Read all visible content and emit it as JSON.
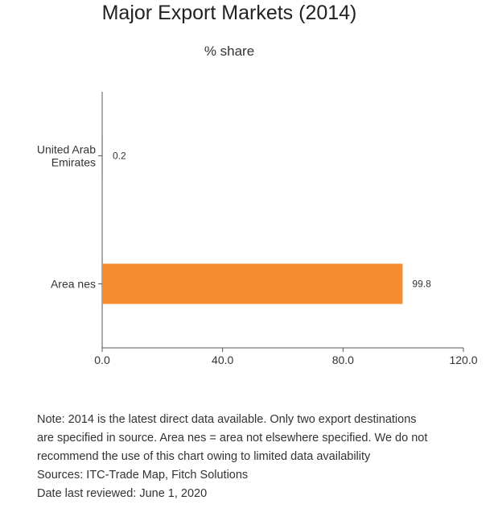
{
  "chart_data": {
    "type": "bar",
    "orientation": "horizontal",
    "title": "Major Export Markets (2014)",
    "subtitle": "% share",
    "categories": [
      [
        "United Arab",
        "Emirates"
      ],
      [
        "Area nes"
      ]
    ],
    "values": [
      0.2,
      99.8
    ],
    "value_labels": [
      "0.2",
      "99.8"
    ],
    "xlim": [
      0,
      120
    ],
    "x_ticks": [
      0,
      40,
      80,
      120
    ],
    "x_tick_labels": [
      "0.0",
      "40.0",
      "80.0",
      "120.0"
    ],
    "bar_color": "#f68d31",
    "grid": false,
    "legend": "none"
  },
  "notes": {
    "lines": [
      "Note: 2014 is the latest direct data available. Only two export destinations",
      "are specified in source. Area nes = area not elsewhere specified. We do not",
      "recommend the use of this chart owing to limited data availability",
      "Sources: ITC-Trade Map, Fitch Solutions",
      "Date last reviewed: June 1, 2020"
    ]
  }
}
